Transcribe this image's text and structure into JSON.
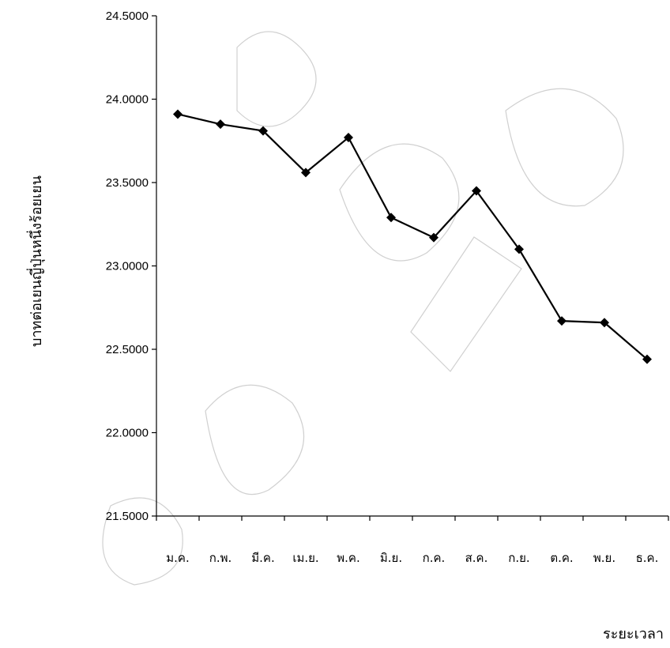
{
  "chart_data": {
    "type": "line",
    "title": "",
    "xlabel": "ระยะเวลา",
    "ylabel": "บาทต่อเยนญี่ปุ่นหนึ่งร้อยเยน",
    "ylim": [
      21.5,
      24.5
    ],
    "yticks": [
      "21.5000",
      "22.0000",
      "22.5000",
      "23.0000",
      "23.5000",
      "24.0000",
      "24.5000"
    ],
    "categories": [
      "ม.ค.",
      "ก.พ.",
      "มี.ค.",
      "เม.ย.",
      "พ.ค.",
      "มิ.ย.",
      "ก.ค.",
      "ส.ค.",
      "ก.ย.",
      "ต.ค.",
      "พ.ย.",
      "ธ.ค."
    ],
    "series": [
      {
        "values": [
          23.91,
          23.85,
          23.81,
          23.56,
          23.77,
          23.29,
          23.17,
          23.45,
          23.1,
          22.67,
          22.66,
          22.44
        ]
      }
    ],
    "grid": false,
    "legend": "none",
    "line_color": "#000000",
    "marker": "diamond"
  }
}
